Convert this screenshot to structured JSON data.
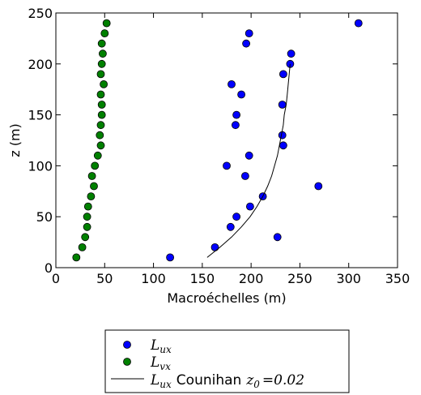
{
  "chart_data": {
    "type": "scatter",
    "xlabel": "Macroéchelles (m)",
    "ylabel": "z (m)",
    "xlim": [
      0,
      350
    ],
    "ylim": [
      0,
      250
    ],
    "xticks": [
      0,
      50,
      100,
      150,
      200,
      250,
      300,
      350
    ],
    "yticks": [
      0,
      50,
      100,
      150,
      200,
      250
    ],
    "grid": false,
    "legend_position": "below",
    "colors": {
      "lux": "#0000ff",
      "lvx": "#008000",
      "curve": "#000000"
    },
    "series": [
      {
        "kind": "points",
        "color": "#0000ff",
        "legend": {
          "main": "L",
          "sub": "ux"
        },
        "points": [
          [
            117,
            10
          ],
          [
            163,
            20
          ],
          [
            227,
            30
          ],
          [
            179,
            40
          ],
          [
            185,
            50
          ],
          [
            199,
            60
          ],
          [
            212,
            70
          ],
          [
            269,
            80
          ],
          [
            194,
            90
          ],
          [
            175,
            100
          ],
          [
            198,
            110
          ],
          [
            233,
            120
          ],
          [
            232,
            130
          ],
          [
            184,
            140
          ],
          [
            185,
            150
          ],
          [
            232,
            160
          ],
          [
            190,
            170
          ],
          [
            180,
            180
          ],
          [
            233,
            190
          ],
          [
            240,
            200
          ],
          [
            241,
            210
          ],
          [
            195,
            220
          ],
          [
            198,
            230
          ],
          [
            310,
            240
          ]
        ]
      },
      {
        "kind": "points",
        "color": "#008000",
        "legend": {
          "main": "L",
          "sub": "vx"
        },
        "points": [
          [
            21,
            10
          ],
          [
            27,
            20
          ],
          [
            30,
            30
          ],
          [
            32,
            40
          ],
          [
            32,
            50
          ],
          [
            33,
            60
          ],
          [
            36,
            70
          ],
          [
            39,
            80
          ],
          [
            37,
            90
          ],
          [
            40,
            100
          ],
          [
            43,
            110
          ],
          [
            46,
            120
          ],
          [
            45,
            130
          ],
          [
            46,
            140
          ],
          [
            47,
            150
          ],
          [
            47,
            160
          ],
          [
            46,
            170
          ],
          [
            49,
            180
          ],
          [
            46,
            190
          ],
          [
            47,
            200
          ],
          [
            48,
            210
          ],
          [
            47,
            220
          ],
          [
            50,
            230
          ],
          [
            52,
            240
          ]
        ]
      },
      {
        "kind": "line",
        "color": "#000000",
        "legend": {
          "main": "L",
          "sub": "ux",
          "text": "Counihan",
          "z_main": "z",
          "z_sub": "0",
          "z_value": "=0.02"
        },
        "points": [
          [
            155,
            10
          ],
          [
            168,
            20
          ],
          [
            180,
            30
          ],
          [
            190,
            40
          ],
          [
            199,
            50
          ],
          [
            206,
            60
          ],
          [
            212,
            70
          ],
          [
            217,
            80
          ],
          [
            221,
            90
          ],
          [
            224,
            100
          ],
          [
            227,
            110
          ],
          [
            229,
            120
          ],
          [
            231,
            130
          ],
          [
            233,
            140
          ],
          [
            234,
            150
          ],
          [
            236,
            160
          ],
          [
            237,
            170
          ],
          [
            238,
            180
          ],
          [
            239,
            190
          ],
          [
            240,
            200
          ]
        ]
      }
    ]
  }
}
